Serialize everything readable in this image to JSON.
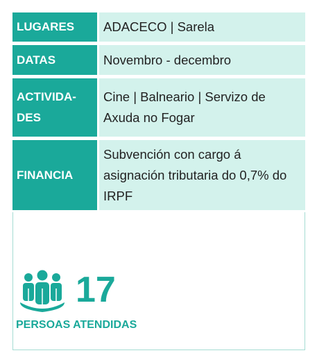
{
  "table": {
    "rows": [
      [
        "LUGARES",
        "ADACECO | Sarela"
      ],
      [
        "DATAS",
        "Novembro - decembro"
      ],
      [
        "ACTIVIDA-\nDES",
        "Cine | Balneario | Servizo de Axuda no Fogar"
      ],
      [
        "FINANCIA",
        "Subvención con cargo á asignación tributaria do 0,7% do IRPF"
      ]
    ]
  },
  "stat": {
    "value": 17,
    "label": "PERSOAS ATENDIDAS"
  }
}
